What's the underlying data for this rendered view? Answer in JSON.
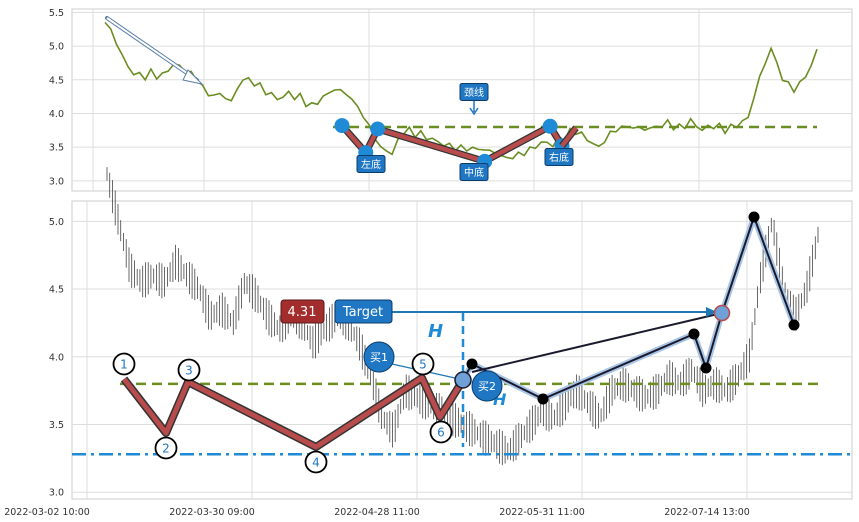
{
  "chart_data": [
    {
      "type": "line",
      "panel": "top",
      "ylim": [
        2.85,
        5.55
      ],
      "yticks": [
        "5.5",
        "5.0",
        "4.5",
        "4.0",
        "3.5",
        "3.0"
      ],
      "grid": true,
      "neckline_y": 3.8,
      "series": [
        {
          "color": "#6b8e23",
          "x": [
            0,
            2,
            4,
            6,
            8,
            10,
            12,
            14,
            16,
            18,
            20,
            22,
            24,
            26,
            28,
            30,
            32,
            34,
            36,
            38,
            40,
            42,
            44,
            46,
            48,
            50,
            52,
            54,
            56,
            58,
            60,
            62,
            64,
            66,
            68,
            70,
            72,
            74,
            76,
            78,
            80,
            82,
            84,
            86,
            88,
            90,
            92,
            94,
            96,
            98,
            100,
            102,
            104,
            106,
            108,
            110,
            112,
            114,
            116,
            118,
            120,
            122,
            124
          ],
          "values": [
            5.35,
            5.0,
            4.65,
            4.55,
            4.6,
            4.55,
            4.7,
            4.6,
            4.5,
            4.3,
            4.35,
            4.25,
            4.55,
            4.45,
            4.3,
            4.2,
            4.3,
            4.25,
            4.1,
            4.2,
            4.3,
            4.25,
            4.1,
            3.85,
            3.55,
            3.45,
            3.75,
            3.7,
            3.65,
            3.6,
            3.55,
            3.5,
            3.45,
            3.4,
            3.35,
            3.3,
            3.4,
            3.5,
            3.6,
            3.55,
            3.65,
            3.75,
            3.65,
            3.55,
            3.75,
            3.8,
            3.75,
            3.7,
            3.75,
            3.85,
            3.8,
            3.9,
            3.75,
            3.8,
            3.75,
            3.85,
            4.0,
            4.6,
            5.0,
            4.5,
            4.3,
            4.5,
            4.9
          ]
        }
      ],
      "pattern_points": [
        {
          "x": 41,
          "y": 3.82
        },
        {
          "x": 45,
          "y": 3.42
        },
        {
          "x": 47,
          "y": 3.77
        },
        {
          "x": 65,
          "y": 3.29
        },
        {
          "x": 76,
          "y": 3.81
        },
        {
          "x": 78,
          "y": 3.52
        }
      ],
      "annotations": [
        {
          "label": "左底",
          "x": 45,
          "y": 3.42
        },
        {
          "label": "中底",
          "x": 65,
          "y": 3.29
        },
        {
          "label": "右底",
          "x": 78,
          "y": 3.52
        },
        {
          "label": "颈线",
          "x": 65,
          "y": 3.8
        }
      ]
    },
    {
      "type": "scatter",
      "panel": "bottom",
      "ylim": [
        2.95,
        5.15
      ],
      "yticks": [
        "5.0",
        "4.5",
        "4.0",
        "3.5",
        "3.0"
      ],
      "xticks": [
        "2022-03-02 10:00",
        "2022-03-30 09:00",
        "2022-04-28 11:00",
        "2022-05-31 11:00",
        "2022-07-14 13:00"
      ],
      "grid": true,
      "neckline_y": 3.8,
      "support_y": 3.28,
      "pattern_points": [
        {
          "label": "1",
          "x": 10,
          "y": 3.82
        },
        {
          "label": "2",
          "x": 21,
          "y": 3.38
        },
        {
          "label": "3",
          "x": 27,
          "y": 3.78
        },
        {
          "label": "4",
          "x": 60,
          "y": 3.29
        },
        {
          "label": "5",
          "x": 85,
          "y": 3.83
        },
        {
          "label": "6",
          "x": 90,
          "y": 3.52
        }
      ],
      "trade_points": [
        {
          "x": 90,
          "y": 3.52
        },
        {
          "x": 95,
          "y": 3.8
        },
        {
          "x": 98,
          "y": 3.93
        },
        {
          "x": 114,
          "y": 3.65
        },
        {
          "x": 141,
          "y": 4.15
        },
        {
          "x": 144,
          "y": 3.89
        },
        {
          "x": 148,
          "y": 4.31
        },
        {
          "x": 155,
          "y": 5.04
        },
        {
          "x": 167,
          "y": 4.22
        }
      ],
      "buy_points": [
        {
          "label": "买1",
          "x": 95,
          "y": 3.8
        },
        {
          "label": "买2",
          "x": 98,
          "y": 3.93
        }
      ],
      "target": {
        "label": "Target",
        "value": "4.31",
        "y": 4.31
      },
      "height_label": "H"
    }
  ]
}
